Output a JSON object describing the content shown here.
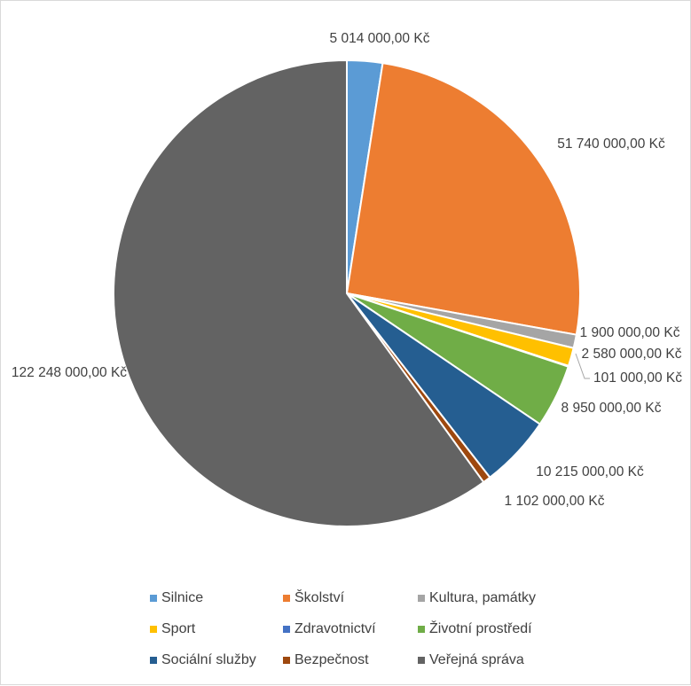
{
  "chart_data": {
    "type": "pie",
    "title": "",
    "categories": [
      "Silnice",
      "Školství",
      "Kultura, památky",
      "Sport",
      "Zdravotnictví",
      "Životní prostředí",
      "Sociální služby",
      "Bezpečnost",
      "Veřejná správa"
    ],
    "values": [
      5014000,
      51740000,
      1900000,
      2580000,
      101000,
      8950000,
      10215000,
      1102000,
      122248000
    ],
    "data_labels": [
      "5 014 000,00 Kč",
      "51 740 000,00 Kč",
      "1 900 000,00 Kč",
      "2 580 000,00 Kč",
      "101 000,00 Kč",
      "8 950 000,00 Kč",
      "10 215 000,00 Kč",
      "1 102 000,00 Kč",
      "122 248 000,00 Kč"
    ],
    "colors": [
      "#5b9bd5",
      "#ed7d31",
      "#a5a5a5",
      "#ffc000",
      "#4472c4",
      "#70ad47",
      "#255e91",
      "#9e480e",
      "#636363"
    ],
    "start_angle": "12 o'clock",
    "direction": "clockwise",
    "legend_position": "bottom"
  }
}
